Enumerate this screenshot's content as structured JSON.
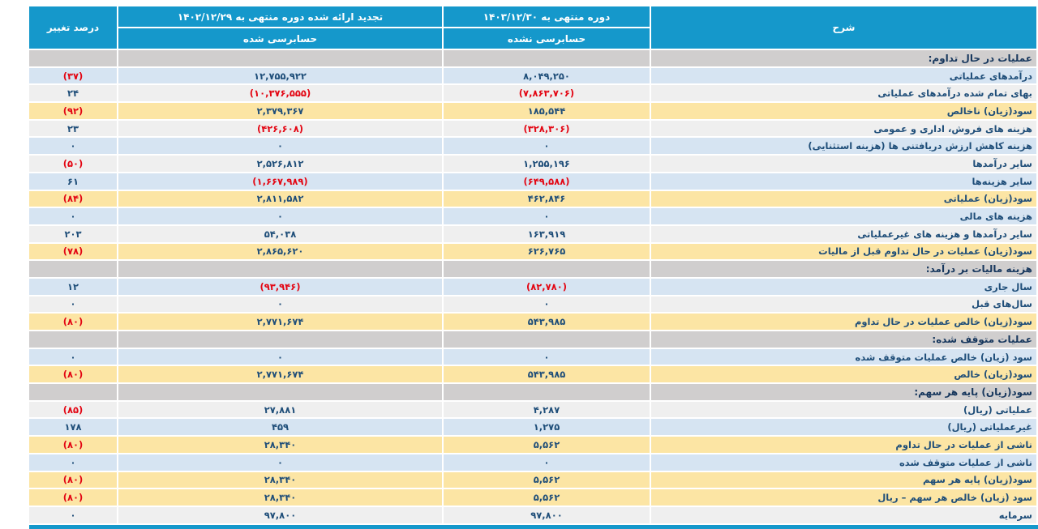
{
  "colors": {
    "header_bg": "#1598cb",
    "section_bg": "#d0cece",
    "row_blue": "#d6e4f2",
    "row_gray": "#efefef",
    "row_yellow": "#fce5a4",
    "text_navy": "#1f4e79",
    "text_section": "#17375d",
    "text_neg": "#e30613"
  },
  "table": {
    "header": {
      "col_desc": "شرح",
      "col_current_top": "دوره منتهی به ۱۴۰۳/۱۲/۳۰",
      "col_current_bottom": "حسابرسی نشده",
      "col_prior_top": "تجدید ارائه شده دوره منتهی به ۱۴۰۲/۱۲/۲۹",
      "col_prior_bottom": "حسابرسی شده",
      "col_change": "درصد تغییر"
    },
    "rows": [
      {
        "type": "section",
        "label": "عملیات در حال تداوم:"
      },
      {
        "type": "data",
        "style": "blue",
        "label": "درآمدهای عملیاتی",
        "current": "۸,۰۴۹,۲۵۰",
        "prior": "۱۲,۷۵۵,۹۲۲",
        "change": "(۳۷)"
      },
      {
        "type": "data",
        "style": "gray",
        "label": "بهای تمام شده درآمدهای عملیاتی",
        "current": "(۷,۸۶۳,۷۰۶)",
        "prior": "(۱۰,۳۷۶,۵۵۵)",
        "change": "۲۴"
      },
      {
        "type": "data",
        "style": "yellow",
        "label": "سود(زیان) ناخالص",
        "current": "۱۸۵,۵۴۴",
        "prior": "۲,۳۷۹,۳۶۷",
        "change": "(۹۲)"
      },
      {
        "type": "data",
        "style": "gray",
        "label": "هزینه های فروش، اداری و عمومی",
        "current": "(۳۲۸,۳۰۶)",
        "prior": "(۴۲۶,۶۰۸)",
        "change": "۲۳"
      },
      {
        "type": "data",
        "style": "blue",
        "label": "هزینه کاهش ارزش دریافتنی ها (هزینه استثنایی)",
        "current": "۰",
        "prior": "۰",
        "change": "۰"
      },
      {
        "type": "data",
        "style": "gray",
        "label": "سایر درآمدها",
        "current": "۱,۲۵۵,۱۹۶",
        "prior": "۲,۵۲۶,۸۱۲",
        "change": "(۵۰)"
      },
      {
        "type": "data",
        "style": "blue",
        "label": "سایر هزینه‌ها",
        "current": "(۶۴۹,۵۸۸)",
        "prior": "(۱,۶۶۷,۹۸۹)",
        "change": "۶۱"
      },
      {
        "type": "data",
        "style": "yellow",
        "label": "سود(زیان) عملیاتی",
        "current": "۴۶۲,۸۴۶",
        "prior": "۲,۸۱۱,۵۸۲",
        "change": "(۸۴)"
      },
      {
        "type": "data",
        "style": "blue",
        "label": "هزینه های مالی",
        "current": "۰",
        "prior": "۰",
        "change": "۰"
      },
      {
        "type": "data",
        "style": "gray",
        "label": "سایر درآمدها و هزینه های غیرعملیاتی",
        "current": "۱۶۳,۹۱۹",
        "prior": "۵۴,۰۳۸",
        "change": "۲۰۳"
      },
      {
        "type": "data",
        "style": "yellow",
        "label": "سود(زیان) عملیات در حال تداوم قبل از مالیات",
        "current": "۶۲۶,۷۶۵",
        "prior": "۲,۸۶۵,۶۲۰",
        "change": "(۷۸)"
      },
      {
        "type": "section",
        "label": "هزینه مالیات بر درآمد:"
      },
      {
        "type": "data",
        "style": "blue",
        "label": "سال جاری",
        "current": "(۸۲,۷۸۰)",
        "prior": "(۹۳,۹۴۶)",
        "change": "۱۲"
      },
      {
        "type": "data",
        "style": "gray",
        "label": "سال‌های قبل",
        "current": "۰",
        "prior": "۰",
        "change": "۰"
      },
      {
        "type": "data",
        "style": "yellow",
        "label": "سود(زیان) خالص عملیات در حال تداوم",
        "current": "۵۴۳,۹۸۵",
        "prior": "۲,۷۷۱,۶۷۴",
        "change": "(۸۰)"
      },
      {
        "type": "section",
        "label": "عملیات متوقف شده:"
      },
      {
        "type": "data",
        "style": "blue",
        "label": "سود (زیان) خالص عملیات متوقف شده",
        "current": "۰",
        "prior": "۰",
        "change": "۰"
      },
      {
        "type": "data",
        "style": "yellow",
        "label": "سود(زیان) خالص",
        "current": "۵۴۳,۹۸۵",
        "prior": "۲,۷۷۱,۶۷۴",
        "change": "(۸۰)"
      },
      {
        "type": "section",
        "label": "سود(زیان) پایه هر سهم:"
      },
      {
        "type": "data",
        "style": "gray",
        "label": "عملیاتی (ریال)",
        "current": "۴,۲۸۷",
        "prior": "۲۷,۸۸۱",
        "change": "(۸۵)"
      },
      {
        "type": "data",
        "style": "blue",
        "label": "غیرعملیاتی (ریال)",
        "current": "۱,۲۷۵",
        "prior": "۴۵۹",
        "change": "۱۷۸"
      },
      {
        "type": "data",
        "style": "yellow",
        "label": "ناشی از عملیات در حال تداوم",
        "current": "۵,۵۶۲",
        "prior": "۲۸,۳۴۰",
        "change": "(۸۰)"
      },
      {
        "type": "data",
        "style": "blue",
        "label": "ناشی از عملیات متوقف شده",
        "current": "۰",
        "prior": "۰",
        "change": "۰"
      },
      {
        "type": "data",
        "style": "yellow",
        "label": "سود(زیان) پایه هر سهم",
        "current": "۵,۵۶۲",
        "prior": "۲۸,۳۴۰",
        "change": "(۸۰)"
      },
      {
        "type": "data",
        "style": "yellow",
        "label": "سود (زیان) خالص هر سهم – ریال",
        "current": "۵,۵۶۲",
        "prior": "۲۸,۳۴۰",
        "change": "(۸۰)"
      },
      {
        "type": "data",
        "style": "gray",
        "label": "سرمایه",
        "current": "۹۷,۸۰۰",
        "prior": "۹۷,۸۰۰",
        "change": "۰"
      }
    ]
  }
}
